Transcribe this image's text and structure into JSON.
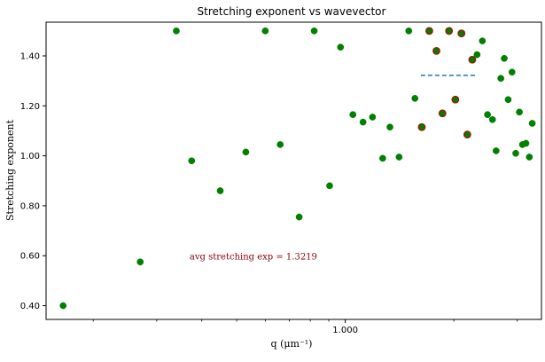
{
  "colors": {
    "marker": "#008000",
    "marker_edge": "#8b2500",
    "avg_line": "#1f77b4",
    "annotation": "#8b0000",
    "axes": "#000000"
  },
  "chart_data": {
    "type": "scatter",
    "title": "Stretching exponent vs wavevector",
    "xlabel": "q (μm⁻¹)",
    "ylabel": "Stretching exponent",
    "xscale": "log",
    "xlim": [
      0.148,
      3.5
    ],
    "ylim": [
      0.345,
      1.535
    ],
    "x_ticks": [
      {
        "value": 1.0,
        "label": "1.000"
      }
    ],
    "x_minor_ticks": [
      0.2,
      0.3,
      0.4,
      0.5,
      0.6,
      0.7,
      0.8,
      0.9,
      2.0,
      3.0
    ],
    "y_ticks": [
      {
        "value": 0.4,
        "label": "0.40"
      },
      {
        "value": 0.6,
        "label": "0.60"
      },
      {
        "value": 0.8,
        "label": "0.80"
      },
      {
        "value": 1.0,
        "label": "1.00"
      },
      {
        "value": 1.2,
        "label": "1.20"
      },
      {
        "value": 1.4,
        "label": "1.40"
      }
    ],
    "grid": false,
    "points": [
      {
        "x": 0.165,
        "y": 0.4
      },
      {
        "x": 0.27,
        "y": 0.575
      },
      {
        "x": 0.34,
        "y": 1.5
      },
      {
        "x": 0.375,
        "y": 0.98
      },
      {
        "x": 0.45,
        "y": 0.86
      },
      {
        "x": 0.53,
        "y": 1.015
      },
      {
        "x": 0.6,
        "y": 1.5
      },
      {
        "x": 0.66,
        "y": 1.045
      },
      {
        "x": 0.745,
        "y": 0.755
      },
      {
        "x": 0.82,
        "y": 1.5
      },
      {
        "x": 0.905,
        "y": 0.88
      },
      {
        "x": 0.97,
        "y": 1.435
      },
      {
        "x": 1.05,
        "y": 1.165
      },
      {
        "x": 1.12,
        "y": 1.135
      },
      {
        "x": 1.19,
        "y": 1.155
      },
      {
        "x": 1.27,
        "y": 0.99
      },
      {
        "x": 1.33,
        "y": 1.115
      },
      {
        "x": 1.41,
        "y": 0.995
      },
      {
        "x": 1.5,
        "y": 1.5
      },
      {
        "x": 1.56,
        "y": 1.23
      },
      {
        "x": 1.63,
        "y": 1.115,
        "edge": true
      },
      {
        "x": 1.71,
        "y": 1.5,
        "edge": true
      },
      {
        "x": 1.79,
        "y": 1.42,
        "edge": true
      },
      {
        "x": 1.86,
        "y": 1.17,
        "edge": true
      },
      {
        "x": 1.94,
        "y": 1.5,
        "edge": true
      },
      {
        "x": 2.02,
        "y": 1.225,
        "edge": true
      },
      {
        "x": 2.1,
        "y": 1.49,
        "edge": true
      },
      {
        "x": 2.18,
        "y": 1.085,
        "edge": true
      },
      {
        "x": 2.25,
        "y": 1.385,
        "edge": true
      },
      {
        "x": 2.32,
        "y": 1.405
      },
      {
        "x": 2.4,
        "y": 1.46
      },
      {
        "x": 2.48,
        "y": 1.165
      },
      {
        "x": 2.56,
        "y": 1.145
      },
      {
        "x": 2.62,
        "y": 1.02
      },
      {
        "x": 2.7,
        "y": 1.31
      },
      {
        "x": 2.76,
        "y": 1.39
      },
      {
        "x": 2.83,
        "y": 1.225
      },
      {
        "x": 2.9,
        "y": 1.335
      },
      {
        "x": 2.97,
        "y": 1.01
      },
      {
        "x": 3.04,
        "y": 1.175
      },
      {
        "x": 3.1,
        "y": 1.045
      },
      {
        "x": 3.17,
        "y": 1.05
      },
      {
        "x": 3.24,
        "y": 0.995
      },
      {
        "x": 3.3,
        "y": 1.13
      }
    ],
    "avg_line": {
      "y": 1.3219,
      "x_start": 1.62,
      "x_end": 2.32
    },
    "annotation": {
      "text": "avg stretching exp = 1.3219",
      "x": 0.37,
      "y": 0.585
    }
  }
}
